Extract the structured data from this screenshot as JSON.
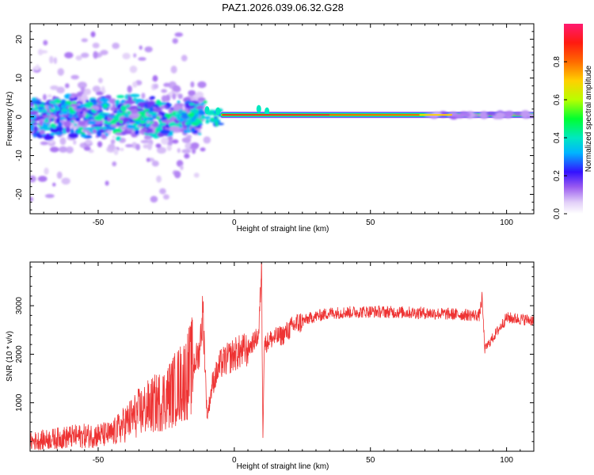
{
  "title": "PAZ1.2026.039.06.32.G28",
  "colors": {
    "snr_line": "#ee3333",
    "frame": "#000000",
    "spectro_low": "#d9c7f5",
    "spectro_mid": "#00c8ff",
    "spectro_high": "#ff2a00"
  },
  "chart_data": [
    {
      "type": "heatmap",
      "name": "spectrogram",
      "xlabel": "Height of straight line (km)",
      "ylabel": "Frequency (Hz)",
      "xlim": [
        -75,
        110
      ],
      "ylim": [
        -25,
        24
      ],
      "xticks": [
        -50,
        0,
        50,
        100
      ],
      "yticks": [
        -20,
        -10,
        0,
        10,
        20
      ],
      "colorbar": {
        "label": "Normalized spectral amplitude",
        "ticks": [
          "0.0",
          "0.2",
          "0.4",
          "0.6",
          "0.8"
        ],
        "range": [
          0,
          1
        ]
      },
      "features": {
        "noisy_region_km": [
          -75,
          -15
        ],
        "tone_start_km": -5,
        "tone_freq_hz": 0.5,
        "tone_peak_amplitude": 1.0
      }
    },
    {
      "type": "line",
      "name": "snr",
      "xlabel": "Height of straight line (km)",
      "ylabel": "SNR (10 * v/v)",
      "xlim": [
        -75,
        110
      ],
      "ylim": [
        0,
        3900
      ],
      "xticks": [
        -50,
        0,
        50,
        100
      ],
      "yticks": [
        1000,
        2000,
        3000
      ],
      "series_keypoints": {
        "x": [
          -75,
          -60,
          -45,
          -35,
          -25,
          -18,
          -13,
          -11.5,
          -10,
          -8,
          -5,
          0,
          5,
          9,
          10,
          10.5,
          11,
          13,
          18,
          22,
          28,
          35,
          50,
          70,
          90,
          91,
          92,
          100,
          110
        ],
        "y": [
          200,
          300,
          350,
          800,
          1100,
          1500,
          2000,
          2900,
          700,
          1400,
          1800,
          2000,
          2100,
          2400,
          3900,
          250,
          2200,
          2300,
          2400,
          2600,
          2750,
          2850,
          2880,
          2850,
          2800,
          3150,
          2100,
          2750,
          2700
        ]
      }
    }
  ]
}
